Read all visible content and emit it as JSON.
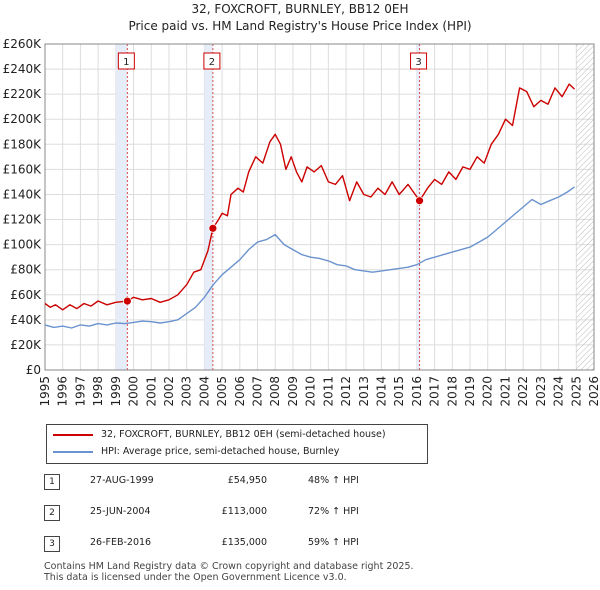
{
  "title_line1": "32, FOXCROFT, BURNLEY, BB12 0EH",
  "title_line2": "Price paid vs. HM Land Registry's House Price Index (HPI)",
  "chart_data": {
    "type": "line",
    "x_range": [
      1995,
      2026
    ],
    "ylim": [
      0,
      260000
    ],
    "grid": true,
    "y_ticks": [
      {
        "value": 0,
        "label": "£0"
      },
      {
        "value": 20000,
        "label": "£20K"
      },
      {
        "value": 40000,
        "label": "£40K"
      },
      {
        "value": 60000,
        "label": "£60K"
      },
      {
        "value": 80000,
        "label": "£80K"
      },
      {
        "value": 100000,
        "label": "£100K"
      },
      {
        "value": 120000,
        "label": "£120K"
      },
      {
        "value": 140000,
        "label": "£140K"
      },
      {
        "value": 160000,
        "label": "£160K"
      },
      {
        "value": 180000,
        "label": "£180K"
      },
      {
        "value": 200000,
        "label": "£200K"
      },
      {
        "value": 220000,
        "label": "£220K"
      },
      {
        "value": 240000,
        "label": "£240K"
      },
      {
        "value": 260000,
        "label": "£260K"
      }
    ],
    "x_ticks": [
      "1995",
      "1996",
      "1997",
      "1998",
      "1999",
      "2000",
      "2001",
      "2002",
      "2003",
      "2004",
      "2005",
      "2006",
      "2007",
      "2008",
      "2009",
      "2010",
      "2011",
      "2012",
      "2013",
      "2014",
      "2015",
      "2016",
      "2017",
      "2018",
      "2019",
      "2020",
      "2021",
      "2022",
      "2023",
      "2024",
      "2025",
      "2026"
    ],
    "shaded_bands": [
      [
        1999.0,
        1999.65
      ],
      [
        2004.0,
        2004.48
      ],
      [
        2016.0,
        2016.15
      ]
    ],
    "future_hatch_start": 2025.0,
    "series": [
      {
        "name": "32, FOXCROFT, BURNLEY, BB12 0EH (semi-detached house)",
        "color": "#cc0000",
        "points": [
          [
            1995.0,
            53000
          ],
          [
            1995.3,
            50000
          ],
          [
            1995.6,
            52000
          ],
          [
            1996.0,
            48000
          ],
          [
            1996.4,
            52000
          ],
          [
            1996.8,
            49000
          ],
          [
            1997.2,
            53000
          ],
          [
            1997.6,
            51000
          ],
          [
            1998.0,
            55000
          ],
          [
            1998.5,
            52000
          ],
          [
            1999.0,
            54000
          ],
          [
            1999.65,
            54950
          ],
          [
            2000.0,
            58000
          ],
          [
            2000.5,
            56000
          ],
          [
            2001.0,
            57000
          ],
          [
            2001.5,
            54000
          ],
          [
            2002.0,
            56000
          ],
          [
            2002.5,
            60000
          ],
          [
            2003.0,
            68000
          ],
          [
            2003.4,
            78000
          ],
          [
            2003.8,
            80000
          ],
          [
            2004.2,
            95000
          ],
          [
            2004.48,
            113000
          ],
          [
            2004.8,
            120000
          ],
          [
            2005.0,
            125000
          ],
          [
            2005.3,
            123000
          ],
          [
            2005.5,
            140000
          ],
          [
            2005.9,
            145000
          ],
          [
            2006.2,
            142000
          ],
          [
            2006.5,
            158000
          ],
          [
            2006.9,
            170000
          ],
          [
            2007.3,
            165000
          ],
          [
            2007.7,
            182000
          ],
          [
            2008.0,
            188000
          ],
          [
            2008.3,
            180000
          ],
          [
            2008.6,
            160000
          ],
          [
            2008.9,
            170000
          ],
          [
            2009.2,
            158000
          ],
          [
            2009.5,
            150000
          ],
          [
            2009.8,
            162000
          ],
          [
            2010.2,
            158000
          ],
          [
            2010.6,
            163000
          ],
          [
            2011.0,
            150000
          ],
          [
            2011.4,
            148000
          ],
          [
            2011.8,
            155000
          ],
          [
            2012.2,
            135000
          ],
          [
            2012.6,
            150000
          ],
          [
            2013.0,
            140000
          ],
          [
            2013.4,
            138000
          ],
          [
            2013.8,
            145000
          ],
          [
            2014.2,
            140000
          ],
          [
            2014.6,
            150000
          ],
          [
            2015.0,
            140000
          ],
          [
            2015.5,
            148000
          ],
          [
            2016.15,
            135000
          ],
          [
            2016.6,
            145000
          ],
          [
            2017.0,
            152000
          ],
          [
            2017.4,
            148000
          ],
          [
            2017.8,
            158000
          ],
          [
            2018.2,
            152000
          ],
          [
            2018.6,
            162000
          ],
          [
            2019.0,
            160000
          ],
          [
            2019.4,
            170000
          ],
          [
            2019.8,
            165000
          ],
          [
            2020.2,
            180000
          ],
          [
            2020.6,
            188000
          ],
          [
            2021.0,
            200000
          ],
          [
            2021.4,
            195000
          ],
          [
            2021.8,
            225000
          ],
          [
            2022.2,
            222000
          ],
          [
            2022.6,
            210000
          ],
          [
            2023.0,
            215000
          ],
          [
            2023.4,
            212000
          ],
          [
            2023.8,
            225000
          ],
          [
            2024.2,
            218000
          ],
          [
            2024.6,
            228000
          ],
          [
            2024.9,
            224000
          ]
        ]
      },
      {
        "name": "HPI: Average price, semi-detached house, Burnley",
        "color": "#6a93cf",
        "points": [
          [
            1995.0,
            36000
          ],
          [
            1995.5,
            34000
          ],
          [
            1996.0,
            35000
          ],
          [
            1996.5,
            33500
          ],
          [
            1997.0,
            36000
          ],
          [
            1997.5,
            35000
          ],
          [
            1998.0,
            37000
          ],
          [
            1998.5,
            36000
          ],
          [
            1999.0,
            37500
          ],
          [
            1999.5,
            37000
          ],
          [
            2000.0,
            38000
          ],
          [
            2000.5,
            39000
          ],
          [
            2001.0,
            38500
          ],
          [
            2001.5,
            37500
          ],
          [
            2002.0,
            38500
          ],
          [
            2002.5,
            40000
          ],
          [
            2003.0,
            45000
          ],
          [
            2003.5,
            50000
          ],
          [
            2004.0,
            58000
          ],
          [
            2004.5,
            68000
          ],
          [
            2005.0,
            76000
          ],
          [
            2005.5,
            82000
          ],
          [
            2006.0,
            88000
          ],
          [
            2006.5,
            96000
          ],
          [
            2007.0,
            102000
          ],
          [
            2007.5,
            104000
          ],
          [
            2008.0,
            108000
          ],
          [
            2008.5,
            100000
          ],
          [
            2009.0,
            96000
          ],
          [
            2009.5,
            92000
          ],
          [
            2010.0,
            90000
          ],
          [
            2010.5,
            89000
          ],
          [
            2011.0,
            87000
          ],
          [
            2011.5,
            84000
          ],
          [
            2012.0,
            83000
          ],
          [
            2012.5,
            80000
          ],
          [
            2013.0,
            79000
          ],
          [
            2013.5,
            78000
          ],
          [
            2014.0,
            79000
          ],
          [
            2014.5,
            80000
          ],
          [
            2015.0,
            81000
          ],
          [
            2015.5,
            82000
          ],
          [
            2016.0,
            84000
          ],
          [
            2016.5,
            88000
          ],
          [
            2017.0,
            90000
          ],
          [
            2017.5,
            92000
          ],
          [
            2018.0,
            94000
          ],
          [
            2018.5,
            96000
          ],
          [
            2019.0,
            98000
          ],
          [
            2019.5,
            102000
          ],
          [
            2020.0,
            106000
          ],
          [
            2020.5,
            112000
          ],
          [
            2021.0,
            118000
          ],
          [
            2021.5,
            124000
          ],
          [
            2022.0,
            130000
          ],
          [
            2022.5,
            136000
          ],
          [
            2023.0,
            132000
          ],
          [
            2023.5,
            135000
          ],
          [
            2024.0,
            138000
          ],
          [
            2024.5,
            142000
          ],
          [
            2024.9,
            146000
          ]
        ]
      }
    ],
    "sale_markers": [
      {
        "label": "1",
        "x": 1999.65,
        "y": 54950
      },
      {
        "label": "2",
        "x": 2004.48,
        "y": 113000
      },
      {
        "label": "3",
        "x": 2016.15,
        "y": 135000
      }
    ]
  },
  "legend": {
    "property_label": "32, FOXCROFT, BURNLEY, BB12 0EH (semi-detached house)",
    "hpi_label": "HPI: Average price, semi-detached house, Burnley"
  },
  "sales": [
    {
      "num": "1",
      "date": "27-AUG-1999",
      "price": "£54,950",
      "hpi": "48% ↑ HPI"
    },
    {
      "num": "2",
      "date": "25-JUN-2004",
      "price": "£113,000",
      "hpi": "72% ↑ HPI"
    },
    {
      "num": "3",
      "date": "26-FEB-2016",
      "price": "£135,000",
      "hpi": "59% ↑ HPI"
    }
  ],
  "footer_line1": "Contains HM Land Registry data © Crown copyright and database right 2025.",
  "footer_line2": "This data is licensed under the Open Government Licence v3.0."
}
